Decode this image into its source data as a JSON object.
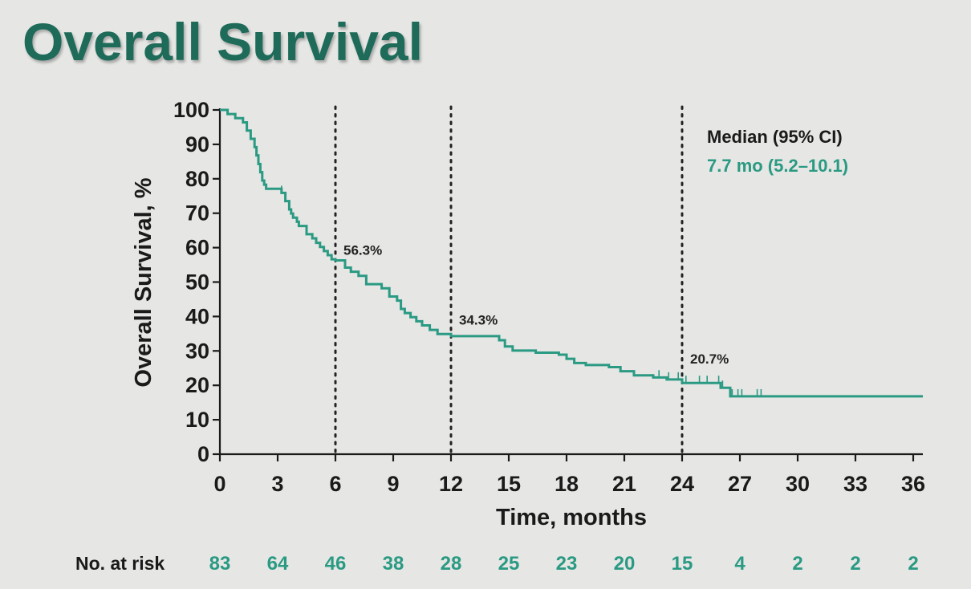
{
  "title": "Overall Survival",
  "chart_data": {
    "type": "line",
    "title": "Overall Survival",
    "xlabel": "Time, months",
    "ylabel": "Overall Survival, %",
    "xlim": [
      0,
      36.5
    ],
    "ylim": [
      0,
      100
    ],
    "xticks": [
      "0",
      "3",
      "6",
      "9",
      "12",
      "15",
      "18",
      "21",
      "24",
      "27",
      "30",
      "33",
      "36"
    ],
    "yticks": [
      "0",
      "10",
      "20",
      "30",
      "40",
      "50",
      "60",
      "70",
      "80",
      "90",
      "100"
    ],
    "grid": false,
    "line_color": "#2a9a83",
    "series": [
      {
        "x": [
          0,
          0.4,
          0.8,
          1.2,
          1.4,
          1.6,
          1.8,
          1.9,
          2.0,
          2.1,
          2.2,
          2.3,
          2.4,
          2.5,
          2.6,
          2.8,
          3.0,
          3.2,
          3.4,
          3.6,
          3.7,
          3.8,
          4.0,
          4.1,
          4.3,
          4.5,
          4.8,
          5.0,
          5.2,
          5.4,
          5.6,
          5.8,
          6.0,
          6.3,
          6.5,
          6.8,
          7.2,
          7.6,
          8.0,
          8.4,
          8.8,
          9.2,
          9.4,
          9.6,
          9.9,
          10.2,
          10.5,
          10.9,
          11.3,
          12.0,
          12.5,
          14.5,
          14.8,
          15.2,
          16.4,
          17.6,
          18.0,
          18.4,
          19.0,
          20.2,
          20.8,
          21.5,
          22.5,
          23.2,
          24.0,
          24.5,
          25.0,
          26.0,
          26.5,
          36.5
        ],
        "y": [
          100,
          98.8,
          97.6,
          96.4,
          94.0,
          91.6,
          89.2,
          86.8,
          84.3,
          81.9,
          79.5,
          78.3,
          77.1,
          77.1,
          77.1,
          77.1,
          77.1,
          75.9,
          73.5,
          71.1,
          69.9,
          68.7,
          67.5,
          66.3,
          66.3,
          63.9,
          62.7,
          61.4,
          60.2,
          59.0,
          57.8,
          56.6,
          56.3,
          56.3,
          54.2,
          53.0,
          51.8,
          49.4,
          49.4,
          48.2,
          45.8,
          44.6,
          42.2,
          41.0,
          39.8,
          38.6,
          37.4,
          36.1,
          34.9,
          34.3,
          34.3,
          33.1,
          31.3,
          30.1,
          29.5,
          28.9,
          27.7,
          26.5,
          25.9,
          25.3,
          24.1,
          22.9,
          22.3,
          21.7,
          20.7,
          20.7,
          20.7,
          19.3,
          16.8,
          16.8
        ]
      }
    ],
    "censor_x": [
      3.2,
      22.8,
      23.3,
      23.8,
      24.2,
      24.9,
      25.3,
      25.9,
      26.1,
      26.6,
      26.9,
      27.1,
      27.9,
      28.1
    ],
    "landmarks": [
      {
        "x": 6,
        "y": 56.3,
        "label": "56.3%"
      },
      {
        "x": 12,
        "y": 34.3,
        "label": "34.3%"
      },
      {
        "x": 24,
        "y": 20.7,
        "label": "20.7%"
      }
    ]
  },
  "median": {
    "heading": "Median (95% CI)",
    "value": "7.7 mo (5.2–10.1)"
  },
  "risk_table": {
    "label": "No. at risk",
    "values": [
      "83",
      "64",
      "46",
      "38",
      "28",
      "25",
      "23",
      "20",
      "15",
      "4",
      "2",
      "2",
      "2"
    ]
  }
}
